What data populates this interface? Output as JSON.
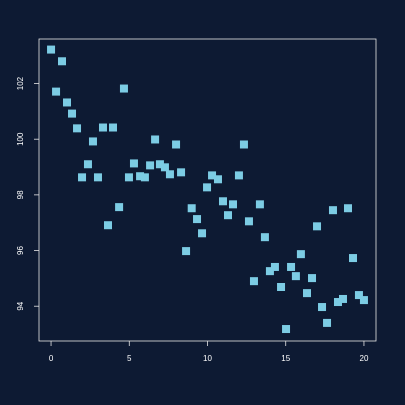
{
  "chart_data": {
    "type": "scatter",
    "color": "#7ccce4",
    "x": [
      0,
      0.32,
      0.7,
      1.02,
      1.34,
      1.66,
      1.98,
      2.36,
      2.68,
      3.0,
      3.32,
      3.64,
      3.96,
      4.35,
      4.66,
      4.98,
      5.3,
      5.69,
      6.0,
      6.33,
      6.65,
      6.96,
      7.28,
      7.6,
      7.99,
      8.31,
      8.63,
      8.99,
      9.33,
      9.65,
      9.97,
      10.29,
      10.67,
      10.99,
      11.31,
      11.63,
      12.01,
      12.33,
      12.65,
      12.97,
      13.35,
      13.67,
      13.99,
      14.31,
      14.7,
      15.02,
      15.34,
      15.65,
      15.97,
      16.36,
      16.68,
      17.0,
      17.32,
      17.64,
      18.02,
      18.34,
      18.66,
      18.98,
      19.3,
      19.68,
      20.0
    ],
    "values": [
      103.22,
      101.71,
      102.8,
      101.32,
      100.92,
      100.39,
      98.63,
      99.1,
      99.92,
      98.63,
      100.42,
      96.91,
      100.42,
      97.56,
      101.82,
      98.63,
      99.13,
      98.67,
      98.63,
      99.06,
      99.99,
      99.1,
      98.99,
      98.74,
      99.81,
      98.81,
      95.98,
      97.52,
      97.13,
      96.62,
      98.27,
      98.7,
      98.56,
      97.77,
      97.27,
      97.66,
      98.7,
      99.81,
      97.05,
      94.9,
      97.66,
      96.48,
      95.26,
      95.41,
      94.69,
      93.18,
      95.41,
      95.08,
      95.87,
      94.47,
      95.01,
      96.87,
      93.97,
      93.4,
      97.45,
      94.15,
      94.26,
      97.52,
      95.73,
      94.4,
      94.22
    ],
    "xlim": [
      -0.77,
      20.77
    ],
    "xticks": [
      0,
      5,
      10,
      15,
      20
    ],
    "ylim": [
      92.75,
      103.6
    ],
    "yticks": [
      94,
      96,
      98,
      100,
      102
    ]
  }
}
